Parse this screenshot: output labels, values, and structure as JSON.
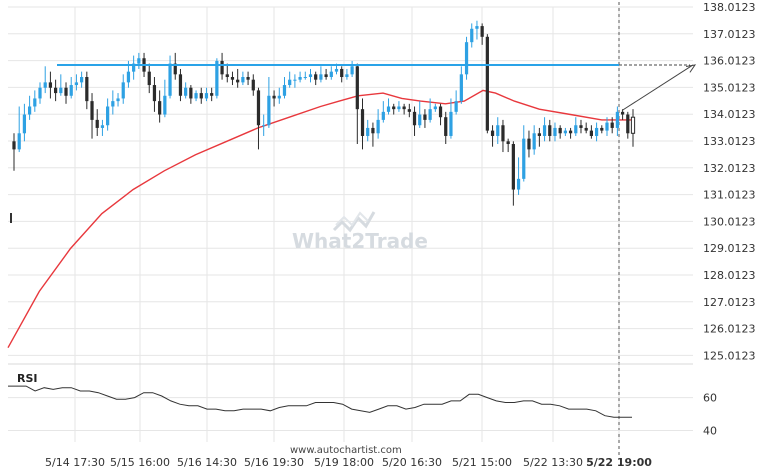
{
  "chart_data": {
    "type": "candlestick",
    "watermark": "What2Trade",
    "source": "www.autochartist.com",
    "colors": {
      "up": "#2ea1e3",
      "down": "#2b2b2b",
      "moving_average": "#e8383d",
      "resistance": "#29a3e8",
      "rsi": "#333333",
      "grid": "#e6e6e6",
      "projection": "#444444"
    },
    "y_axis": {
      "ticks": [
        "138.0123",
        "137.0123",
        "136.0123",
        "135.0123",
        "134.0123",
        "133.0123",
        "132.0123",
        "131.0123",
        "130.0123",
        "129.0123",
        "128.0123",
        "127.0123",
        "126.0123",
        "125.0123"
      ],
      "range": [
        124.5,
        138.2
      ]
    },
    "x_axis": {
      "ticks": [
        "5/14 17:30",
        "5/15 16:00",
        "5/16 14:30",
        "5/16 19:30",
        "5/19 18:00",
        "5/20 16:30",
        "5/21 15:00",
        "5/22 13:30",
        "5/22 19:00"
      ],
      "highlight": "5/22 19:00"
    },
    "resistance_level": 135.85,
    "projection": {
      "from": 134.15,
      "to": 135.85
    },
    "candles": [
      [
        133.0,
        132.7,
        133.3,
        131.9
      ],
      [
        132.7,
        133.3,
        134.3,
        132.6
      ],
      [
        133.3,
        134.0,
        134.4,
        133.0
      ],
      [
        134.0,
        134.3,
        134.7,
        133.8
      ],
      [
        134.3,
        134.6,
        134.9,
        134.1
      ],
      [
        134.6,
        135.0,
        135.2,
        134.4
      ],
      [
        135.0,
        135.2,
        135.8,
        134.8
      ],
      [
        135.2,
        135.0,
        135.6,
        134.6
      ],
      [
        135.0,
        134.8,
        135.3,
        134.5
      ],
      [
        134.8,
        135.0,
        135.5,
        134.7
      ],
      [
        135.0,
        134.7,
        135.2,
        134.4
      ],
      [
        134.7,
        135.1,
        135.4,
        134.6
      ],
      [
        135.1,
        135.2,
        135.5,
        134.9
      ],
      [
        135.2,
        135.4,
        135.6,
        135.0
      ],
      [
        135.4,
        134.5,
        135.6,
        134.2
      ],
      [
        134.5,
        133.8,
        134.8,
        133.1
      ],
      [
        133.8,
        133.5,
        134.2,
        133.2
      ],
      [
        133.5,
        133.6,
        133.8,
        133.2
      ],
      [
        133.6,
        134.3,
        134.6,
        133.4
      ],
      [
        134.3,
        134.5,
        134.9,
        134.0
      ],
      [
        134.5,
        134.6,
        134.8,
        134.3
      ],
      [
        134.6,
        135.2,
        135.5,
        134.4
      ],
      [
        135.2,
        135.6,
        136.0,
        135.0
      ],
      [
        135.6,
        135.9,
        136.2,
        135.3
      ],
      [
        135.9,
        136.1,
        136.3,
        135.7
      ],
      [
        136.1,
        135.6,
        136.3,
        135.4
      ],
      [
        135.6,
        135.1,
        135.9,
        134.8
      ],
      [
        135.1,
        134.5,
        135.4,
        134.1
      ],
      [
        134.5,
        134.0,
        134.9,
        133.7
      ],
      [
        134.0,
        134.7,
        135.3,
        133.9
      ],
      [
        134.7,
        135.9,
        136.2,
        134.6
      ],
      [
        135.9,
        135.5,
        136.3,
        135.3
      ],
      [
        135.5,
        134.7,
        135.7,
        134.5
      ],
      [
        134.7,
        135.0,
        135.2,
        134.6
      ],
      [
        135.0,
        134.6,
        135.1,
        134.4
      ],
      [
        134.6,
        134.8,
        134.9,
        134.5
      ],
      [
        134.8,
        134.6,
        135.0,
        134.4
      ],
      [
        134.6,
        134.8,
        135.0,
        134.5
      ],
      [
        134.8,
        134.7,
        135.0,
        134.5
      ],
      [
        134.7,
        136.0,
        136.1,
        134.6
      ],
      [
        136.0,
        135.5,
        136.3,
        135.3
      ],
      [
        135.5,
        135.4,
        135.9,
        135.2
      ],
      [
        135.4,
        135.3,
        135.6,
        135.1
      ],
      [
        135.3,
        135.2,
        135.7,
        135.0
      ],
      [
        135.2,
        135.4,
        135.6,
        135.1
      ],
      [
        135.4,
        135.3,
        135.6,
        135.1
      ],
      [
        135.3,
        134.9,
        135.5,
        134.7
      ],
      [
        134.9,
        133.6,
        135.0,
        132.7
      ],
      [
        133.6,
        133.6,
        134.0,
        133.2
      ],
      [
        133.6,
        134.7,
        135.4,
        133.5
      ],
      [
        134.7,
        134.6,
        134.9,
        134.3
      ],
      [
        134.6,
        134.7,
        135.0,
        134.4
      ],
      [
        134.7,
        135.1,
        135.4,
        134.6
      ],
      [
        135.1,
        135.3,
        135.6,
        135.0
      ],
      [
        135.3,
        135.3,
        135.5,
        135.0
      ],
      [
        135.3,
        135.4,
        135.6,
        135.2
      ],
      [
        135.4,
        135.4,
        135.6,
        135.3
      ],
      [
        135.4,
        135.5,
        135.7,
        135.2
      ],
      [
        135.5,
        135.3,
        135.6,
        135.1
      ],
      [
        135.3,
        135.5,
        135.8,
        135.2
      ],
      [
        135.5,
        135.4,
        135.7,
        135.3
      ],
      [
        135.4,
        135.6,
        135.8,
        135.3
      ],
      [
        135.6,
        135.7,
        135.9,
        135.5
      ],
      [
        135.7,
        135.4,
        135.8,
        135.2
      ],
      [
        135.4,
        135.5,
        135.7,
        135.3
      ],
      [
        135.5,
        135.8,
        136.0,
        135.4
      ],
      [
        135.8,
        134.2,
        135.9,
        132.9
      ],
      [
        134.2,
        133.2,
        134.6,
        132.7
      ],
      [
        133.2,
        133.5,
        133.8,
        133.0
      ],
      [
        133.5,
        133.3,
        133.7,
        132.8
      ],
      [
        133.3,
        133.8,
        134.2,
        133.1
      ],
      [
        133.8,
        134.1,
        134.5,
        133.7
      ],
      [
        134.1,
        134.3,
        134.6,
        134.0
      ],
      [
        134.3,
        134.2,
        134.4,
        134.0
      ],
      [
        134.2,
        134.3,
        134.5,
        134.1
      ],
      [
        134.3,
        134.2,
        134.4,
        134.0
      ],
      [
        134.2,
        134.1,
        134.4,
        133.9
      ],
      [
        134.1,
        133.6,
        134.3,
        133.2
      ],
      [
        133.6,
        134.0,
        134.5,
        133.5
      ],
      [
        134.0,
        133.8,
        134.2,
        133.5
      ],
      [
        133.8,
        134.2,
        134.6,
        133.7
      ],
      [
        134.2,
        134.3,
        134.4,
        134.1
      ],
      [
        134.3,
        133.9,
        134.4,
        133.6
      ],
      [
        133.9,
        133.2,
        134.1,
        132.9
      ],
      [
        133.2,
        134.1,
        134.6,
        133.1
      ],
      [
        134.1,
        134.5,
        134.9,
        134.0
      ],
      [
        134.5,
        135.5,
        135.8,
        134.4
      ],
      [
        135.5,
        136.7,
        136.9,
        135.3
      ],
      [
        136.7,
        137.2,
        137.4,
        136.5
      ],
      [
        137.2,
        137.3,
        137.5,
        136.8
      ],
      [
        137.3,
        136.9,
        137.4,
        136.6
      ],
      [
        136.9,
        133.4,
        137.0,
        133.3
      ],
      [
        133.4,
        133.2,
        133.6,
        132.8
      ],
      [
        133.2,
        133.6,
        133.9,
        132.9
      ],
      [
        133.6,
        133.0,
        133.8,
        132.6
      ],
      [
        133.0,
        132.9,
        133.1,
        132.6
      ],
      [
        132.9,
        131.2,
        133.0,
        130.6
      ],
      [
        131.2,
        131.6,
        132.4,
        131.0
      ],
      [
        131.6,
        133.1,
        133.6,
        131.5
      ],
      [
        133.1,
        132.7,
        133.4,
        132.4
      ],
      [
        132.7,
        133.3,
        133.6,
        132.5
      ],
      [
        133.3,
        133.2,
        133.5,
        132.8
      ],
      [
        133.2,
        133.6,
        133.9,
        133.0
      ],
      [
        133.6,
        133.2,
        133.8,
        133.0
      ],
      [
        133.2,
        133.5,
        133.7,
        133.0
      ],
      [
        133.5,
        133.3,
        133.6,
        133.1
      ],
      [
        133.3,
        133.4,
        133.5,
        133.2
      ],
      [
        133.4,
        133.3,
        133.5,
        133.1
      ],
      [
        133.3,
        133.6,
        133.9,
        133.2
      ],
      [
        133.6,
        133.5,
        133.8,
        133.3
      ],
      [
        133.5,
        133.4,
        133.7,
        133.3
      ],
      [
        133.4,
        133.2,
        133.6,
        133.1
      ],
      [
        133.2,
        133.5,
        133.7,
        133.0
      ],
      [
        133.5,
        133.4,
        133.6,
        133.3
      ],
      [
        133.4,
        133.7,
        133.9,
        133.2
      ],
      [
        133.7,
        133.5,
        133.9,
        133.3
      ],
      [
        133.5,
        134.1,
        134.3,
        133.2
      ],
      [
        134.1,
        134.0,
        134.2,
        133.8
      ],
      [
        134.0,
        133.3,
        134.1,
        133.1
      ],
      [
        133.3,
        133.9,
        134.2,
        132.8
      ]
    ],
    "moving_average": [
      [
        0,
        125.3
      ],
      [
        0.05,
        127.4
      ],
      [
        0.1,
        129.0
      ],
      [
        0.15,
        130.3
      ],
      [
        0.2,
        131.2
      ],
      [
        0.25,
        131.9
      ],
      [
        0.3,
        132.5
      ],
      [
        0.35,
        133.0
      ],
      [
        0.4,
        133.5
      ],
      [
        0.45,
        133.9
      ],
      [
        0.5,
        134.3
      ],
      [
        0.53,
        134.5
      ],
      [
        0.56,
        134.7
      ],
      [
        0.6,
        134.8
      ],
      [
        0.63,
        134.6
      ],
      [
        0.66,
        134.5
      ],
      [
        0.7,
        134.4
      ],
      [
        0.73,
        134.5
      ],
      [
        0.76,
        134.9
      ],
      [
        0.78,
        134.8
      ],
      [
        0.81,
        134.5
      ],
      [
        0.85,
        134.2
      ],
      [
        0.9,
        134.0
      ],
      [
        0.95,
        133.8
      ],
      [
        1.0,
        133.8
      ]
    ],
    "rsi": {
      "label": "RSI",
      "ticks": [
        "60",
        "40"
      ],
      "range": [
        33,
        78
      ],
      "values": [
        67,
        67,
        67,
        64,
        66,
        65,
        66,
        66,
        64,
        64,
        63,
        61,
        59,
        59,
        60,
        63,
        63,
        61,
        58,
        56,
        55,
        55,
        53,
        53,
        52,
        52,
        53,
        53,
        53,
        52,
        54,
        55,
        55,
        55,
        57,
        57,
        57,
        56,
        53,
        52,
        51,
        53,
        55,
        55,
        53,
        54,
        56,
        56,
        56,
        58,
        58,
        62,
        62,
        60,
        58,
        57,
        57,
        58,
        58,
        56,
        56,
        55,
        53,
        53,
        53,
        52,
        49,
        48,
        48,
        48
      ]
    }
  }
}
